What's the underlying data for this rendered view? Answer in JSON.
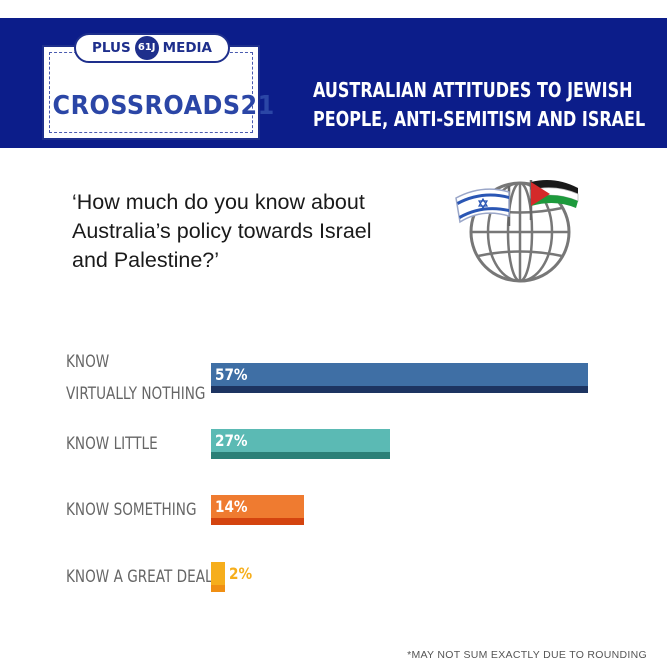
{
  "header": {
    "logo_top_left": "PLUS",
    "logo_badge": "61J",
    "logo_top_right": "MEDIA",
    "logo_name": "CROSSROADS21",
    "title_line1": "Australian attitudes to Jewish",
    "title_line2": "people, anti-Semitism and Israel"
  },
  "question": {
    "line1": "‘How much do you know about",
    "line2": "Australia’s policy towards Israel",
    "line3": "and Palestine?’"
  },
  "icon": "globe-with-israel-and-palestine-flags-icon",
  "chart_data": {
    "type": "bar",
    "orientation": "horizontal",
    "categories": [
      "Know virtually nothing",
      "Know little",
      "Know something",
      "Know a great deal"
    ],
    "category_lines": [
      [
        "Know",
        "virtually nothing"
      ],
      [
        "Know little"
      ],
      [
        "Know something"
      ],
      [
        "Know a great deal"
      ]
    ],
    "values": [
      57,
      27,
      14,
      2
    ],
    "value_labels": [
      "57%",
      "27%",
      "14%",
      "2%"
    ],
    "unit": "%",
    "colors": [
      "#3f6fa5",
      "#5bbab4",
      "#ef7b30",
      "#f6ae1c"
    ],
    "shade_colors": [
      "#1d3461",
      "#2a8077",
      "#d4440f",
      "#f08f13"
    ],
    "title": "",
    "xlabel": "",
    "ylabel": "",
    "grid": false,
    "legend": "none"
  },
  "footnote": "*May not sum exactly due to rounding"
}
